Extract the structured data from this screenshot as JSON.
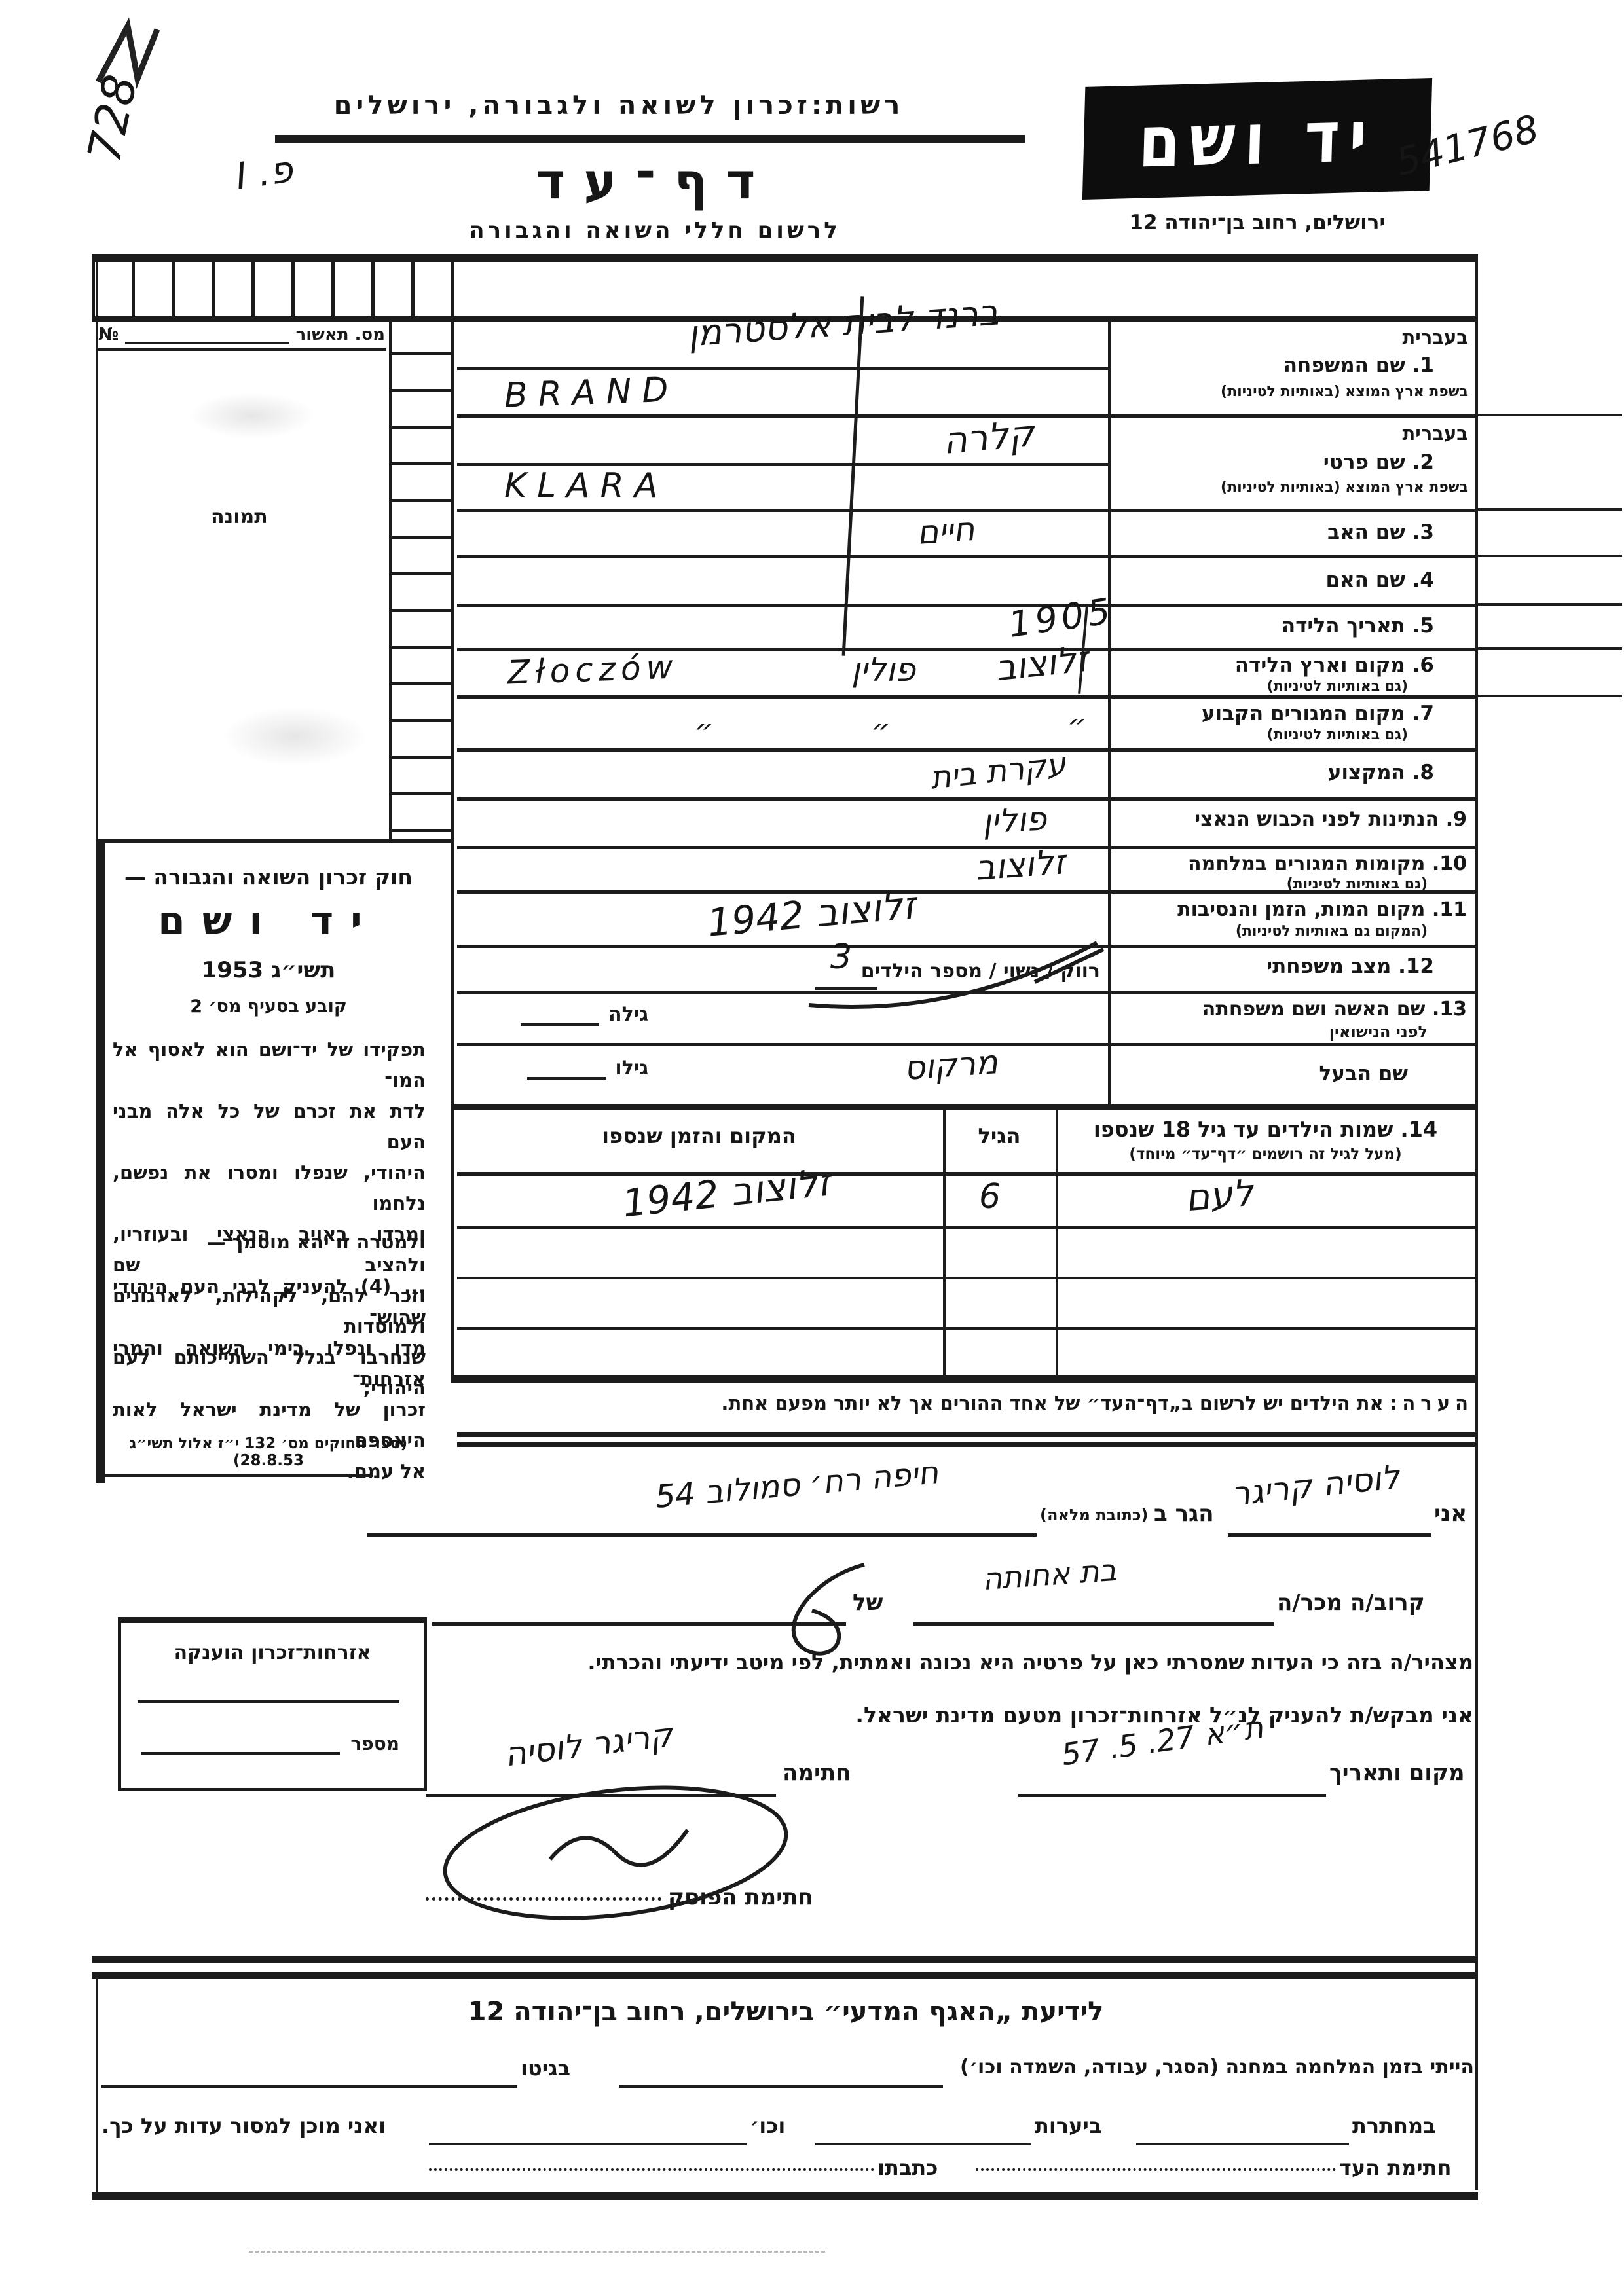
{
  "page": {
    "paper_color": "#ffffff",
    "ink_color": "#1a1a1a"
  },
  "header": {
    "corner_number_hw": "728",
    "file_note_hw": "פ. I",
    "agency_line": "רשות:זכרון לשואה ולגבורה, ירושלים",
    "form_title": "דף־עד",
    "form_subtitle": "לרשום חללי השואה והגבורה",
    "logo_text": "יד ושם",
    "logo_number_hw": "541768",
    "address_line": "ירושלים, רחוב בן־יהודה 12"
  },
  "sidebar": {
    "approval_label": "מס. תאשור",
    "approval_no_sign": "№",
    "photo_label": "תמונה",
    "law": {
      "heading": "חוק זכרון השואה והגבורה —",
      "name": "יד ושם",
      "year": "תשי״ג 1953",
      "clause": "קובע בסעיף מס׳ 2",
      "p1": [
        "תפקידו של יד־ושם הוא לאסוף אל המו־",
        "לדת את זכרם של כל אלה מבני העם",
        "היהודי, שנפלו ומסרו את נפשם, נלחמו",
        "ומרדו באויב הנאצי ובעוזריו, ולהציב שם",
        "וזכר להם, לקהילות, לארגונים ולמוסדות",
        "שנחרבו בגלל השתייכותם לעם היהודי;"
      ],
      "bridge": "ולמטרה זו יהא מוסמך —",
      "p2": [
        "... (4) להעניק לבני העם היהודי שהוש־",
        "מדו ונפלו בימי השואה והמרי אזרחות־",
        "זכרון של מדינת ישראל לאות היאספם",
        "אל עמם."
      ],
      "citation": "(ספר החוקים מס׳ 132 י״ז אלול תשי״ג 28.8.53)"
    },
    "grant_box": {
      "title": "אזרחות־זכרון הוענקה",
      "number_label": "מספר"
    }
  },
  "fields": {
    "f1": {
      "lang": "בעברית",
      "num": "1.",
      "label": "שם המשפחה",
      "sub": "בשפת ארץ המוצא (באותיות לטיניות)"
    },
    "f2": {
      "lang": "בעברית",
      "num": "2.",
      "label": "שם פרטי",
      "sub": "בשפת ארץ המוצא (באותיות לטיניות)"
    },
    "f3": {
      "num": "3.",
      "label": "שם האב"
    },
    "f4": {
      "num": "4.",
      "label": "שם האם"
    },
    "f5": {
      "num": "5.",
      "label": "תאריך הלידה"
    },
    "f6": {
      "num": "6.",
      "label": "מקום וארץ הלידה",
      "sub": "(גם באותיות לטיניות)"
    },
    "f7": {
      "num": "7.",
      "label": "מקום המגורים הקבוע",
      "sub": "(גם באותיות לטיניות)"
    },
    "f8": {
      "num": "8.",
      "label": "המקצוע"
    },
    "f9": {
      "num": "9.",
      "label": "הנתינות לפני הכבוש הנאצי"
    },
    "f10": {
      "num": "10.",
      "label": "מקומות המגורים במלחמה",
      "sub": "(גם באותיות לטיניות)"
    },
    "f11": {
      "num": "11.",
      "label": "מקום המות, הזמן והנסיבות",
      "sub": "(המקום גם באותיות לטיניות)"
    },
    "f12": {
      "num": "12.",
      "label": "מצב משפחתי"
    },
    "f13": {
      "num": "13.",
      "label": "שם האשה ושם משפחתה",
      "sub": "לפני הנישואין"
    },
    "husband_label": "שם הבעל",
    "marital_options": "רווק / נשוי / מספר הילדים",
    "her_age_label": "גילה",
    "his_age_label": "גילו"
  },
  "entries": {
    "surname_he": "ברנד לבית אלסטרמן",
    "surname_latin": "BRAND",
    "given_he": "קלרה",
    "given_latin": "KLARA",
    "father": "חיים",
    "birth_year": "1905",
    "birth_place_latin": "Złoczów",
    "birth_country": "פולין",
    "birth_place_he": "זלוצוב",
    "ditto": "״",
    "profession": "עקרת בית",
    "citizenship": "פולין",
    "war_residence": "זלוצוב",
    "death_place_time": "זלוצוב 1942",
    "children_count": "3",
    "husband": "מרקוס"
  },
  "children_table": {
    "col_place": "המקום והזמן שנספו",
    "col_age": "הגיל",
    "rows": [
      {
        "name": "לעם",
        "age": "6",
        "place": "זלוצוב 1942"
      }
    ]
  },
  "note": {
    "label": "הערה:",
    "text": "את הילדים יש לרשום ב„דף־העד״ של אחד ההורים אך לא יותר מפעם אחת."
  },
  "declaration": {
    "i_label": "אני",
    "name_hw": "לוסיה קריגר",
    "resides_label": "הגר ב",
    "address_paren": "(כתובת מלאה)",
    "address_hw": "חיפה רח׳ סמולוב 54",
    "relative_label": "קרוב/ה מכר/ה",
    "relative_hw": "בת אחותה",
    "of_label": "של",
    "declare_text": "מצהיר/ה בזה כי העדות שמסרתי כאן על פרטיה היא נכונה ואמתית, לפי מיטב ידיעתי והכרתי.",
    "request_text": "אני מבקש/ת להעניק לנ״ל אזרחות־זכרון מטעם מדינת ישראל.",
    "place_date_label": "מקום ותאריך",
    "place_date_hw": "ת״א 27. 5. 57",
    "signature_label": "חתימה",
    "signature_hw": "קריגר לוסיה",
    "posek_label": "חתימת הפוסק"
  },
  "bottom": {
    "title": "לידיעת „האגף המדעי״ בירושלים, רחוב בן־יהודה 12",
    "camp_label": "הייתי בזמן המלחמה במחנה (הסגר, עבודה, השמדה וכו׳)",
    "ghetto_label": "בגיטו",
    "underground_label": "במחתרת",
    "forests_label": "ביערות",
    "etc_label": "וכו׳",
    "testify_label": "ואני מוכן למסור עדות על כך.",
    "witness_sig_label": "חתימת העד",
    "witness_addr_label": "כתבתו"
  }
}
